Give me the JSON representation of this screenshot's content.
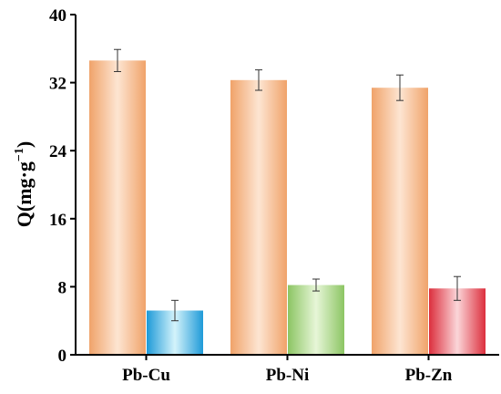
{
  "chart_data": {
    "type": "bar",
    "categories": [
      "Pb-Cu",
      "Pb-Ni",
      "Pb-Zn"
    ],
    "ylabel_main": "Q(mg·g",
    "ylabel_sup": "−1",
    "ylabel_end": ")",
    "xlabel": "",
    "ylim": [
      0,
      40
    ],
    "yticks": [
      0,
      8,
      16,
      24,
      32,
      40
    ],
    "grid": false,
    "legend": "none",
    "series": [
      {
        "values": [
          34.6,
          32.3,
          31.4
        ],
        "errors": [
          1.3,
          1.2,
          1.5
        ],
        "colors": [
          {
            "light": "#fde5d2",
            "dark": "#f0a36a"
          },
          {
            "light": "#fde5d2",
            "dark": "#f0a36a"
          },
          {
            "light": "#fde5d2",
            "dark": "#f0a36a"
          }
        ]
      },
      {
        "values": [
          5.2,
          8.2,
          7.8
        ],
        "errors": [
          1.2,
          0.7,
          1.4
        ],
        "colors": [
          {
            "light": "#d4f3fb",
            "dark": "#1e9ad8"
          },
          {
            "light": "#e7f6d8",
            "dark": "#8cc563"
          },
          {
            "light": "#fbd6d9",
            "dark": "#dc2f3d"
          }
        ]
      }
    ]
  }
}
